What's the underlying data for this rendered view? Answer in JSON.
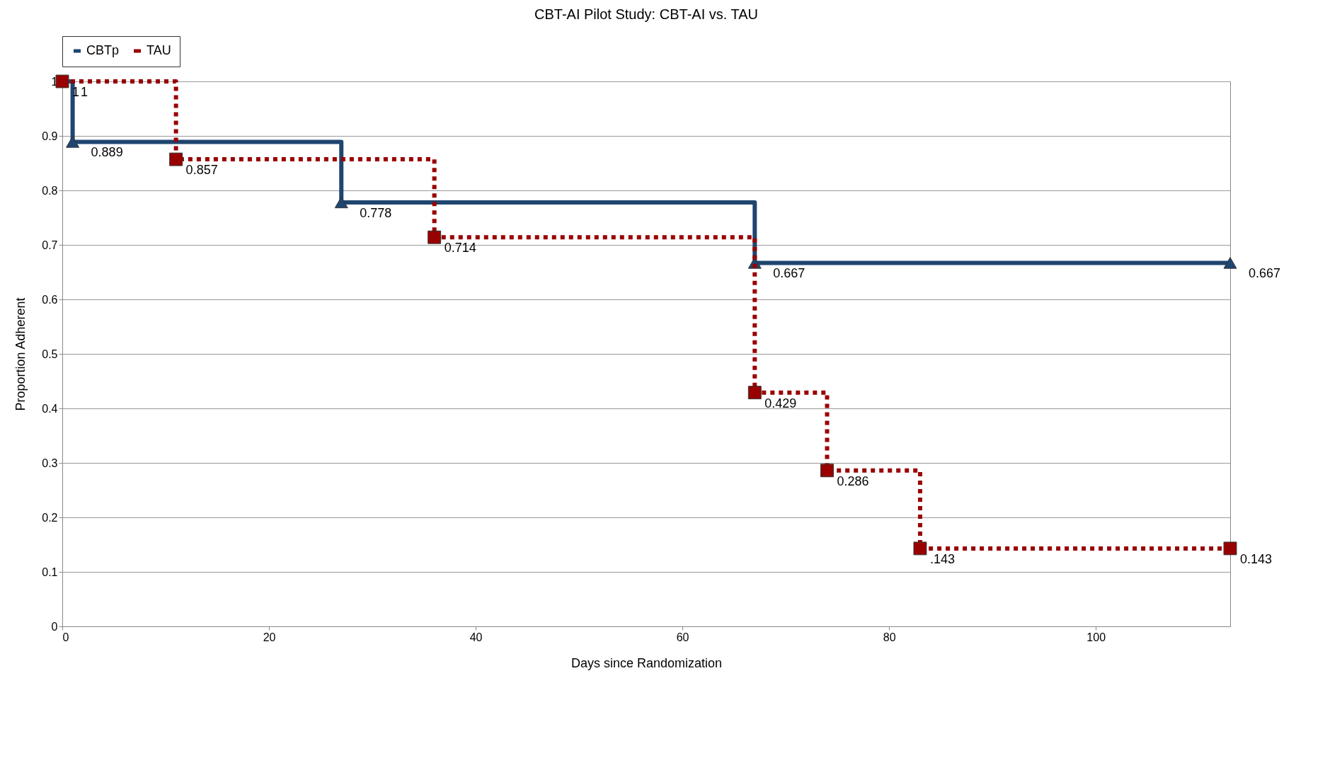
{
  "chart_data": {
    "type": "step",
    "title": "CBT-AI Pilot Study: CBT-AI vs. TAU",
    "xlabel": "Days since Randomization",
    "ylabel": "Proportion Adherent",
    "xlim": [
      0,
      113
    ],
    "xticks": [
      0,
      20,
      40,
      60,
      80,
      100
    ],
    "ylim": [
      0,
      1
    ],
    "yticks": [
      0,
      0.1,
      0.2,
      0.3,
      0.4,
      0.5,
      0.6,
      0.7,
      0.8,
      0.9,
      1
    ],
    "grid": "y",
    "legend": "top",
    "series": [
      {
        "name": "CBTp",
        "color": "#1f4570",
        "marker": "triangle",
        "line_style": "solid",
        "x": [
          0,
          1,
          27,
          67,
          113
        ],
        "values": [
          1,
          0.889,
          0.778,
          0.667,
          0.667
        ],
        "value_labels": [
          "1",
          "0.889",
          "0.778",
          "0.667",
          "0.667"
        ]
      },
      {
        "name": "TAU",
        "color": "#990000",
        "marker": "square",
        "line_style": "dotted",
        "x": [
          0,
          11,
          36,
          67,
          74,
          83,
          113
        ],
        "values": [
          1,
          0.857,
          0.714,
          0.429,
          0.286,
          0.143,
          0.143
        ],
        "value_labels": [
          "1",
          "0.857",
          "0.714",
          "0.429",
          "0.286",
          ".143",
          "0.143"
        ]
      }
    ]
  }
}
